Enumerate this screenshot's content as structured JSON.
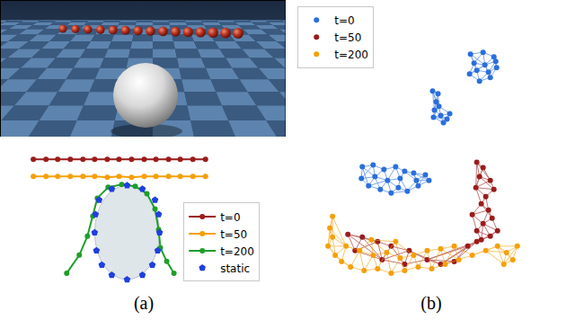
{
  "chart_data": [
    {
      "type": "scatter",
      "caption": "(a)",
      "tick_labels": false,
      "grid": false,
      "legend": "right",
      "xlim": [
        0,
        318
      ],
      "ylim": [
        0,
        166
      ],
      "series": [
        {
          "name": "t=0",
          "color": "#9b1c1c",
          "marker": "circle",
          "line_style": "solid",
          "x": [
            37,
            51,
            64,
            78,
            92,
            105,
            119,
            132,
            146,
            160,
            173,
            187,
            200,
            214,
            228
          ],
          "y": [
            141,
            141,
            141,
            141,
            141,
            141,
            141,
            141,
            141,
            141,
            141,
            141,
            141,
            141,
            141
          ]
        },
        {
          "name": "t=50",
          "color": "#f5a00a",
          "marker": "circle",
          "line_style": "solid",
          "x": [
            37,
            51,
            64,
            78,
            92,
            105,
            119,
            132,
            146,
            160,
            173,
            187,
            200,
            214,
            228
          ],
          "y": [
            122,
            122,
            122,
            122,
            122,
            122,
            121,
            122,
            121,
            122,
            122,
            122,
            122,
            122,
            122
          ]
        },
        {
          "name": "t=200",
          "color": "#1f9e2a",
          "marker": "circle",
          "line_style": "solid",
          "x": [
            74,
            88,
            97,
            103,
            108,
            120,
            135,
            150,
            163,
            172,
            176,
            178,
            185,
            193
          ],
          "y": [
            15,
            35,
            56,
            78,
            98,
            110,
            113,
            111,
            103,
            86,
            63,
            43,
            28,
            15
          ]
        },
        {
          "name": "static",
          "color": "#1f3fe0",
          "marker": "pentagon",
          "line_style": "none",
          "x": [
            141,
            124,
            110,
            106,
            105,
            107,
            113,
            124,
            141,
            158,
            169,
            175,
            177,
            176,
            172,
            158
          ],
          "y": [
            112,
            108,
            96,
            80,
            60,
            40,
            24,
            13,
            8,
            13,
            24,
            40,
            60,
            80,
            96,
            108
          ]
        }
      ]
    },
    {
      "type": "scatter",
      "caption": "(b)",
      "tick_labels": false,
      "grid": false,
      "legend": "upper left",
      "xlim": [
        0,
        311
      ],
      "ylim": [
        0,
        316
      ],
      "series": [
        {
          "name": "t=0",
          "color": "#2a6fdc",
          "marker": "circle",
          "line_style": "solid",
          "groups": [
            {
              "x": [
                198,
                212,
                224,
                227,
                220,
                208,
                197,
                202,
                214,
                218,
                205,
                226
              ],
              "y": [
                258,
                260,
                255,
                243,
                232,
                228,
                236,
                248,
                246,
                238,
                240,
                250
              ]
            },
            {
              "x": [
                156,
                162,
                160,
                158,
                165,
                172,
                168,
                157,
                175,
                163
              ],
              "y": [
                217,
                214,
                205,
                196,
                190,
                186,
                182,
                188,
                192,
                200
              ]
            },
            {
              "x": [
                78,
                90,
                102,
                115,
                125,
                135,
                148,
                152,
                140,
                128,
                118,
                110,
                98,
                85,
                77,
                92,
                106,
                120,
                138
              ],
              "y": [
                133,
                135,
                130,
                133,
                128,
                126,
                124,
                118,
                112,
                106,
                110,
                104,
                108,
                112,
                120,
                122,
                118,
                120,
                118
              ]
            }
          ]
        },
        {
          "name": "t=50",
          "color": "#9b1c1c",
          "marker": "circle",
          "line_style": "solid",
          "groups": [
            {
              "x": [
                205,
                212,
                208,
                220,
                224,
                215,
                210,
                218,
                222,
                212,
                205,
                210,
                220,
                228,
                200,
                204
              ],
              "y": [
                138,
                132,
                122,
                118,
                108,
                100,
                92,
                85,
                76,
                70,
                62,
                52,
                56,
                62,
                80,
                110
              ]
            },
            {
              "x": [
                62,
                78,
                95,
                110,
                130,
                150,
                165,
                180,
                195,
                205,
                70,
                100,
                125
              ],
              "y": [
                58,
                55,
                50,
                45,
                40,
                30,
                25,
                28,
                45,
                50,
                40,
                30,
                25
              ]
            }
          ]
        },
        {
          "name": "t=200",
          "color": "#f5a00a",
          "marker": "circle",
          "line_style": "solid",
          "groups": [
            {
              "x": [
                45,
                42,
                45,
                40,
                48,
                55,
                65,
                80,
                95,
                110,
                125,
                140,
                155,
                170,
                185,
                200,
                215,
                228,
                238,
                245,
                250,
                235,
                60,
                75,
                90,
                105,
                120,
                135,
                150,
                165,
                180,
                88,
                115
              ],
              "y": [
                78,
                65,
                55,
                45,
                35,
                28,
                22,
                18,
                20,
                15,
                18,
                22,
                20,
                25,
                30,
                35,
                40,
                45,
                38,
                30,
                45,
                25,
                45,
                40,
                35,
                38,
                32,
                35,
                40,
                42,
                45,
                52,
                50
              ]
            }
          ]
        }
      ]
    }
  ]
}
